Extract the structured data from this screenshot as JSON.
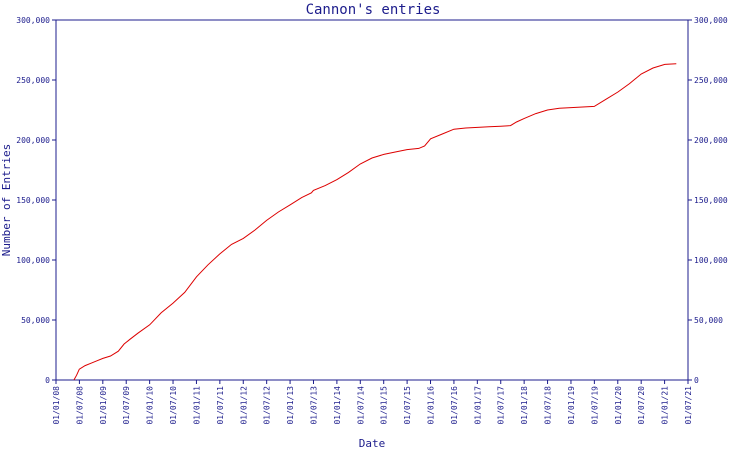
{
  "chart_data": {
    "type": "line",
    "title": "Cannon's entries",
    "xlabel": "Date",
    "ylabel": "Number of Entries",
    "x_ticks": [
      "01/01/08",
      "01/07/08",
      "01/01/09",
      "01/07/09",
      "01/01/10",
      "01/07/10",
      "01/01/11",
      "01/07/11",
      "01/01/12",
      "01/07/12",
      "01/01/13",
      "01/07/13",
      "01/01/14",
      "01/07/14",
      "01/01/15",
      "01/07/15",
      "01/01/16",
      "01/07/16",
      "01/01/17",
      "01/07/17",
      "01/01/18",
      "01/07/18",
      "01/01/19",
      "01/07/19",
      "01/01/20",
      "01/07/20",
      "01/01/21",
      "01/07/21"
    ],
    "y_ticks": [
      "0",
      "50,000",
      "100,000",
      "150,000",
      "200,000",
      "250,000",
      "300,000"
    ],
    "y_tick_values": [
      0,
      50000,
      100000,
      150000,
      200000,
      250000,
      300000
    ],
    "ylim": [
      0,
      300000
    ],
    "xlim": [
      "2008-01-01",
      "2021-07-01"
    ],
    "grid": false,
    "colors": {
      "axis": "#1c1c8c",
      "line": "#dd0000",
      "background": "#ffffff"
    },
    "series": [
      {
        "x": [
          "2008-05-20",
          "2008-06-10",
          "2008-07-01",
          "2008-08-15",
          "2008-10-01",
          "2008-11-15",
          "2009-01-01",
          "2009-03-01",
          "2009-05-01",
          "2009-06-15",
          "2009-08-01",
          "2009-10-01",
          "2010-01-01",
          "2010-04-01",
          "2010-07-01",
          "2010-10-01",
          "2011-01-01",
          "2011-04-01",
          "2011-07-01",
          "2011-10-01",
          "2012-01-01",
          "2012-04-01",
          "2012-07-01",
          "2012-10-01",
          "2013-01-01",
          "2013-04-01",
          "2013-06-15",
          "2013-07-01",
          "2013-10-01",
          "2014-01-01",
          "2014-04-01",
          "2014-07-01",
          "2014-10-01",
          "2015-01-01",
          "2015-04-01",
          "2015-07-01",
          "2015-10-01",
          "2015-11-15",
          "2016-01-01",
          "2016-04-01",
          "2016-07-01",
          "2016-10-01",
          "2017-01-01",
          "2017-04-01",
          "2017-07-01",
          "2017-09-15",
          "2017-11-01",
          "2018-01-01",
          "2018-04-01",
          "2018-07-01",
          "2018-10-01",
          "2019-01-01",
          "2019-04-01",
          "2019-07-01",
          "2019-10-01",
          "2020-01-01",
          "2020-04-01",
          "2020-07-01",
          "2020-10-01",
          "2021-01-01",
          "2021-04-01"
        ],
        "values": [
          0,
          4000,
          9000,
          12000,
          14000,
          16000,
          18000,
          20000,
          24000,
          30000,
          34000,
          39000,
          46000,
          56000,
          64000,
          73000,
          86000,
          96000,
          105000,
          113000,
          118000,
          125000,
          133000,
          140000,
          146000,
          152000,
          156000,
          158000,
          162000,
          167000,
          173000,
          180000,
          185000,
          188000,
          190000,
          192000,
          193000,
          195000,
          201000,
          205000,
          209000,
          210000,
          210500,
          211000,
          211500,
          212000,
          215000,
          218000,
          222000,
          225000,
          226500,
          227000,
          227500,
          228000,
          234000,
          240000,
          247000,
          255000,
          260000,
          263000,
          263500
        ]
      }
    ]
  }
}
